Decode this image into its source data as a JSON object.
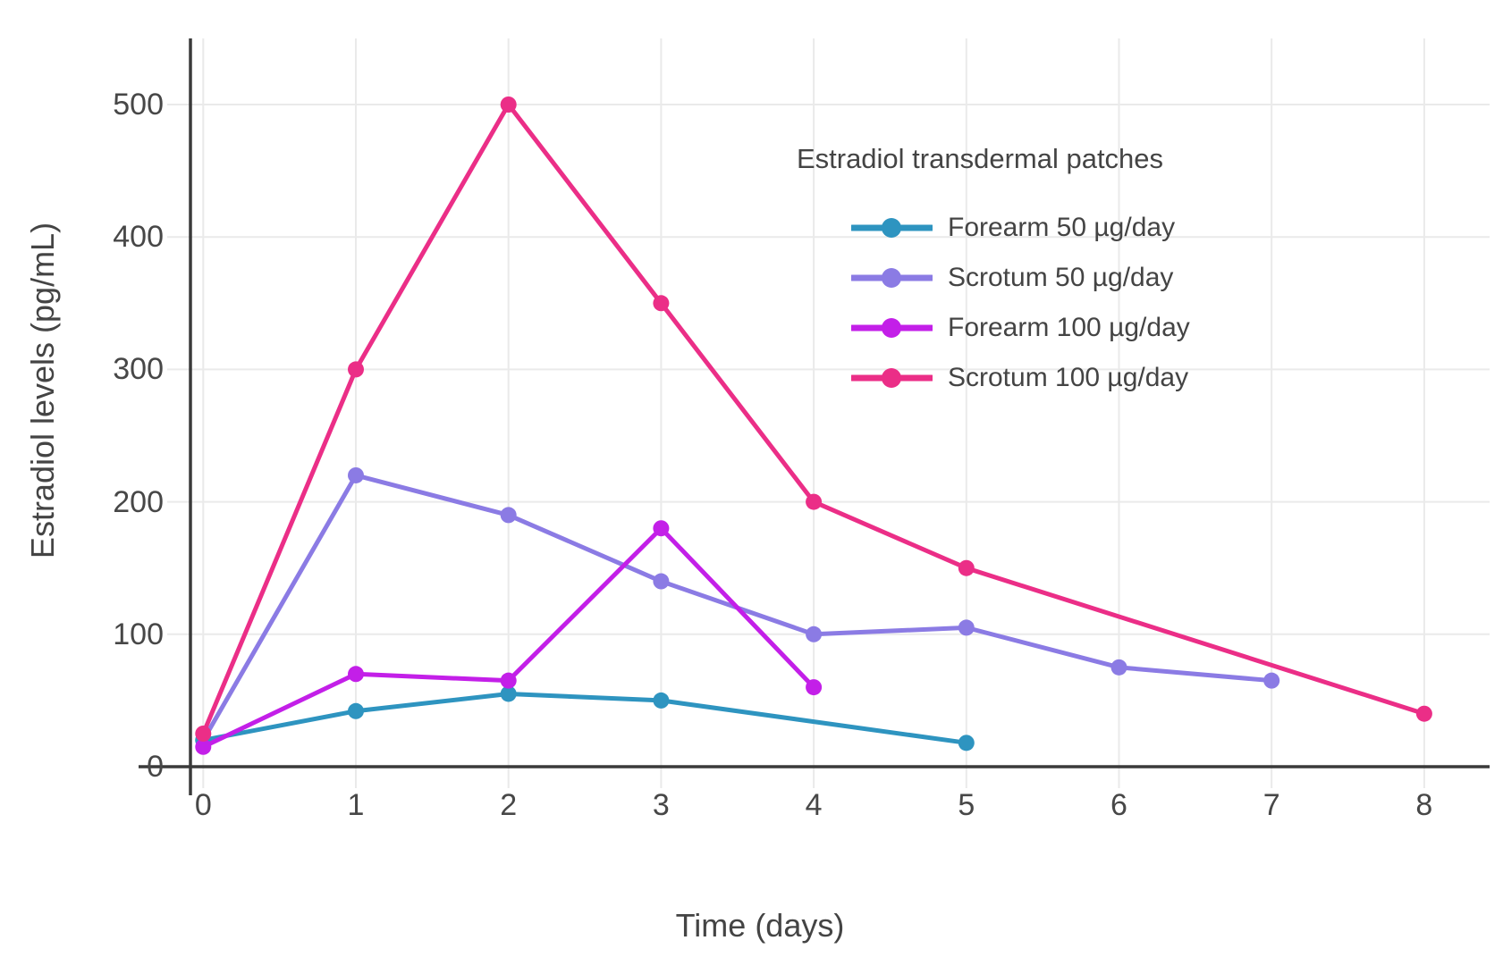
{
  "chart_data": {
    "type": "line",
    "legend_title": "Estradiol transdermal patches",
    "xlabel": "Time (days)",
    "ylabel": "Estradiol levels (pg/mL)",
    "x_ticks": [
      0,
      1,
      2,
      3,
      4,
      5,
      6,
      7,
      8
    ],
    "y_ticks": [
      0,
      100,
      200,
      300,
      400,
      500
    ],
    "xlim": [
      -0.1,
      8.55
    ],
    "ylim": [
      0,
      550
    ],
    "grid": true,
    "legend_position": "inside-top-right",
    "colors": {
      "axis": "#3A3A3A",
      "gridline": "#EAEAEA",
      "text": "#444444"
    },
    "series": [
      {
        "name": "Forearm 50 µg/day",
        "color": "#2E94C0",
        "x": [
          0,
          1,
          2,
          3,
          5
        ],
        "y": [
          20,
          42,
          55,
          50,
          18
        ]
      },
      {
        "name": "Scrotum 50 µg/day",
        "color": "#8B7BE4",
        "x": [
          0,
          1,
          2,
          3,
          4,
          5,
          6,
          7
        ],
        "y": [
          20,
          220,
          190,
          140,
          100,
          105,
          75,
          65
        ]
      },
      {
        "name": "Forearm 100 µg/day",
        "color": "#C31FE8",
        "x": [
          0,
          1,
          2,
          3,
          4
        ],
        "y": [
          15,
          70,
          65,
          180,
          60
        ]
      },
      {
        "name": "Scrotum 100 µg/day",
        "color": "#EB2E87",
        "x": [
          0,
          1,
          2,
          3,
          4,
          5,
          8
        ],
        "y": [
          25,
          300,
          500,
          350,
          200,
          150,
          40
        ]
      }
    ]
  }
}
